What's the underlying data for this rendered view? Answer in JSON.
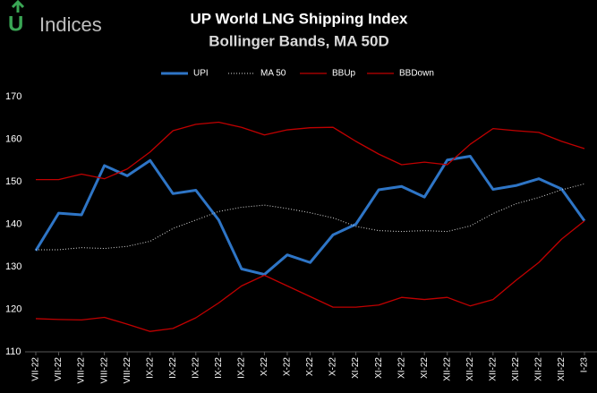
{
  "logo": {
    "mark": "U",
    "text": "Indices"
  },
  "chart_data": {
    "type": "line",
    "title": "UP World  LNG Shipping  Index",
    "subtitle": "Bollinger  Bands,  MA 50D",
    "categories": [
      "VII-22",
      "VII-22",
      "VIII-22",
      "VIII-22",
      "VIII-22",
      "IX-22",
      "IX-22",
      "IX-22",
      "IX-22",
      "IX-22",
      "X-22",
      "X-22",
      "X-22",
      "X-22",
      "XI-22",
      "XI-22",
      "XI-22",
      "XI-22",
      "XII-22",
      "XII-22",
      "XII-22",
      "XII-22",
      "XII-22",
      "XII-22",
      "I-23"
    ],
    "series": [
      {
        "name": "UPI",
        "color": "#2e75c6",
        "width": 3,
        "dash": "none",
        "values": [
          133.8,
          142.6,
          142.2,
          153.8,
          151.4,
          155,
          147.2,
          148,
          141,
          129.5,
          128.2,
          132.8,
          131,
          137.5,
          140,
          148.1,
          148.9,
          146.4,
          155.1,
          156,
          148.2,
          149.1,
          150.7,
          148.3,
          140.8
        ]
      },
      {
        "name": "MA 50",
        "color": "#d9d9d9",
        "width": 1,
        "dash": "1,2",
        "values": [
          134,
          134,
          134.5,
          134.3,
          134.8,
          136,
          139,
          141,
          143,
          144,
          144.5,
          143.7,
          142.7,
          141.5,
          139.5,
          138.5,
          138.3,
          138.5,
          138.3,
          139.6,
          142.5,
          144.8,
          146.3,
          148.1,
          149.5
        ]
      },
      {
        "name": "BBUp",
        "color": "#c00000",
        "width": 1.3,
        "dash": "none",
        "values": [
          150.5,
          150.5,
          151.8,
          150.7,
          153,
          157,
          162,
          163.5,
          164,
          162.8,
          161,
          162.2,
          162.7,
          162.8,
          159.5,
          156.5,
          154,
          154.6,
          154,
          158.8,
          162.5,
          162,
          161.6,
          159.5,
          157.8
        ]
      },
      {
        "name": "BBDown",
        "color": "#c00000",
        "width": 1.3,
        "dash": "none",
        "values": [
          117.8,
          117.6,
          117.5,
          118.1,
          116.5,
          114.8,
          115.5,
          118,
          121.5,
          125.5,
          128,
          125.5,
          123,
          120.5,
          120.5,
          121,
          122.8,
          122.3,
          122.8,
          120.8,
          122.3,
          126.8,
          131,
          136.5,
          140.8
        ]
      }
    ],
    "ylim": [
      110,
      170
    ],
    "yticks": [
      110,
      120,
      130,
      140,
      150,
      160,
      170
    ],
    "grid": false,
    "legend": "top"
  }
}
